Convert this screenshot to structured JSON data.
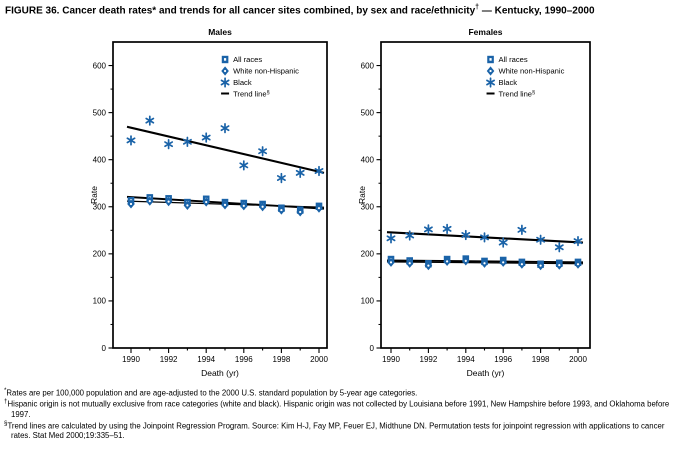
{
  "title": {
    "part1": "FIGURE 36. Cancer death rates* and trends for all cancer sites combined, by sex and race/ethnicity",
    "sup": "†",
    "part2": " — Kentucky, 1990–2000"
  },
  "colors": {
    "marker_blue": "#1a63a8",
    "trend_black": "#000000"
  },
  "legend": {
    "trend_label": "Trend line",
    "trend_sup": "§"
  },
  "chart_data": [
    {
      "type": "scatter",
      "title": "Males",
      "xlabel": "Death (yr)",
      "ylabel": "Rate",
      "x": [
        1990,
        1991,
        1992,
        1993,
        1994,
        1995,
        1996,
        1997,
        1998,
        1999,
        2000
      ],
      "xticks_labeled": [
        1990,
        1992,
        1994,
        1996,
        1998,
        2000
      ],
      "yticks": [
        0,
        100,
        200,
        300,
        400,
        500,
        600
      ],
      "ylim": [
        0,
        650
      ],
      "grid": false,
      "legend_position": "inside-top-right",
      "series": [
        {
          "name": "All races",
          "marker": "square",
          "values": [
            313,
            319,
            317,
            309,
            316,
            309,
            307,
            305,
            297,
            293,
            301
          ],
          "trend": [
            321,
            296
          ]
        },
        {
          "name": "White non-Hispanic",
          "marker": "diamond",
          "values": [
            306,
            312,
            311,
            303,
            310,
            304,
            302,
            300,
            293,
            289,
            297
          ],
          "trend": [
            312,
            299
          ]
        },
        {
          "name": "Black",
          "marker": "asterisk",
          "values": [
            441,
            483,
            433,
            438,
            447,
            467,
            388,
            418,
            361,
            372,
            376
          ],
          "trend": [
            470,
            372
          ]
        }
      ]
    },
    {
      "type": "scatter",
      "title": "Females",
      "xlabel": "Death (yr)",
      "ylabel": "Rate",
      "x": [
        1990,
        1991,
        1992,
        1993,
        1994,
        1995,
        1996,
        1997,
        1998,
        1999,
        2000
      ],
      "xticks_labeled": [
        1990,
        1992,
        1994,
        1996,
        1998,
        2000
      ],
      "yticks": [
        0,
        100,
        200,
        300,
        400,
        500,
        600
      ],
      "ylim": [
        0,
        650
      ],
      "grid": false,
      "legend_position": "inside-top-right",
      "series": [
        {
          "name": "All races",
          "marker": "square",
          "values": [
            188,
            185,
            179,
            188,
            189,
            184,
            186,
            182,
            178,
            180,
            182
          ],
          "trend": [
            186,
            182
          ]
        },
        {
          "name": "White non-Hispanic",
          "marker": "diamond",
          "values": [
            182,
            180,
            175,
            184,
            185,
            180,
            182,
            178,
            175,
            176,
            178
          ],
          "trend": [
            183,
            179
          ]
        },
        {
          "name": "Black",
          "marker": "asterisk",
          "values": [
            233,
            239,
            252,
            253,
            240,
            235,
            224,
            251,
            230,
            214,
            227
          ],
          "trend": [
            246,
            224
          ]
        }
      ]
    }
  ],
  "footnotes": [
    {
      "marker": "*",
      "text": "Rates are per 100,000 population and are age-adjusted to the 2000 U.S. standard population by 5-year age categories."
    },
    {
      "marker": "†",
      "text": "Hispanic origin is not mutually exclusive from race categories (white and black). Hispanic origin was not collected by Louisiana before 1991, New Hampshire before 1993, and Oklahoma before 1997."
    },
    {
      "marker": "§",
      "text": "Trend lines are calculated by using the Joinpoint Regression Program. Source: Kim H-J, Fay MP, Feuer EJ, Midthune DN. Permutation tests for joinpoint regression with applications to cancer rates. Stat Med 2000;19:335–51."
    }
  ]
}
